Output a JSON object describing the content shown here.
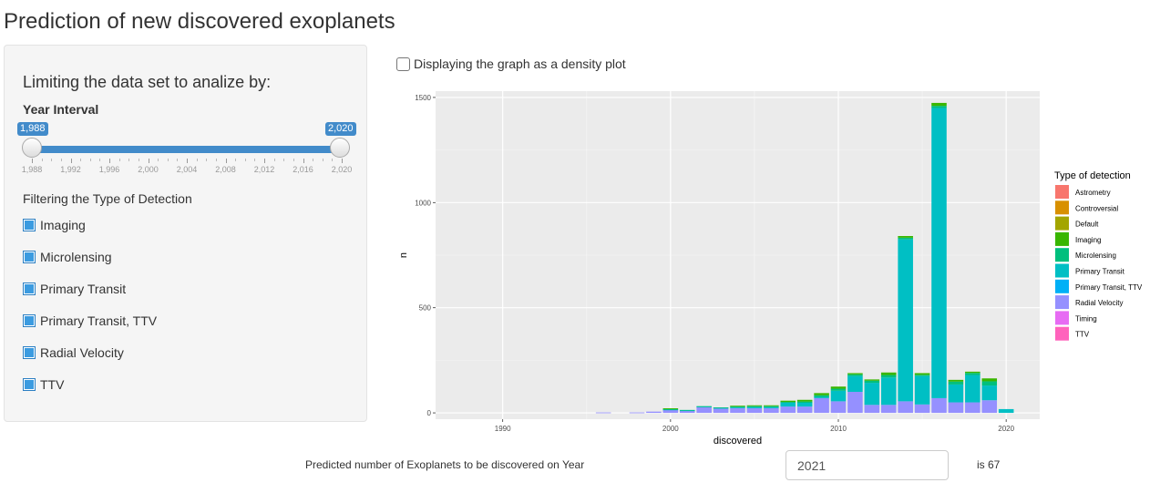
{
  "page": {
    "title": "Prediction of new discovered exoplanets"
  },
  "sidebar": {
    "heading": "Limiting the data set to analize by:",
    "year_interval": {
      "label": "Year Interval",
      "min": 1988,
      "max": 2020,
      "from": 1988,
      "to": 2020,
      "from_label": "1,988",
      "to_label": "2,020",
      "tick_labels": [
        "1,988",
        "1,992",
        "1,996",
        "2,000",
        "2,004",
        "2,008",
        "2,012",
        "2,016",
        "2,020"
      ]
    },
    "filter_label": "Filtering the Type of Detection",
    "checkboxes": [
      {
        "label": "Imaging",
        "checked": true
      },
      {
        "label": "Microlensing",
        "checked": true
      },
      {
        "label": "Primary Transit",
        "checked": true
      },
      {
        "label": "Primary Transit, TTV",
        "checked": true
      },
      {
        "label": "Radial Velocity",
        "checked": true
      },
      {
        "label": "TTV",
        "checked": true
      }
    ]
  },
  "density_checkbox": {
    "label": "Displaying the graph as a density plot",
    "checked": false
  },
  "prediction": {
    "label": "Predicted number of Exoplanets to be discovered on Year",
    "year_value": "2021",
    "result": "is 67"
  },
  "chart_data": {
    "type": "bar",
    "stacked": true,
    "xlabel": "discovered",
    "ylabel": "n",
    "xlim": [
      1986,
      2022
    ],
    "ylim": [
      -30,
      1530
    ],
    "x_ticks": [
      1990,
      2000,
      2010,
      2020
    ],
    "y_ticks": [
      0,
      500,
      1000,
      1500
    ],
    "grid": true,
    "legend_title": "Type of detection",
    "legend_position": "right",
    "legend": [
      {
        "name": "Astrometry",
        "color": "#F8766D"
      },
      {
        "name": "Controversial",
        "color": "#D89000"
      },
      {
        "name": "Default",
        "color": "#A3A500"
      },
      {
        "name": "Imaging",
        "color": "#39B600"
      },
      {
        "name": "Microlensing",
        "color": "#00BF7D"
      },
      {
        "name": "Primary Transit",
        "color": "#00BFC4"
      },
      {
        "name": "Primary Transit, TTV",
        "color": "#00B0F6"
      },
      {
        "name": "Radial Velocity",
        "color": "#9590FF"
      },
      {
        "name": "Timing",
        "color": "#E76BF3"
      },
      {
        "name": "TTV",
        "color": "#FF62BC"
      }
    ],
    "years": [
      1996,
      1998,
      1999,
      2000,
      2001,
      2002,
      2003,
      2004,
      2005,
      2006,
      2007,
      2008,
      2009,
      2010,
      2011,
      2012,
      2013,
      2014,
      2015,
      2016,
      2017,
      2018,
      2019,
      2020
    ],
    "series": [
      {
        "name": "Radial Velocity",
        "color": "#9590FF",
        "values": [
          2,
          2,
          6,
          14,
          10,
          28,
          20,
          22,
          22,
          22,
          30,
          30,
          70,
          55,
          100,
          38,
          38,
          55,
          40,
          70,
          50,
          50,
          60,
          0
        ]
      },
      {
        "name": "Primary Transit",
        "color": "#00BFC4",
        "values": [
          0,
          0,
          0,
          2,
          2,
          2,
          4,
          4,
          6,
          6,
          18,
          18,
          6,
          50,
          75,
          105,
          130,
          770,
          135,
          1380,
          85,
          130,
          70,
          18
        ]
      },
      {
        "name": "Microlensing",
        "color": "#00BF7D",
        "values": [
          0,
          0,
          0,
          2,
          2,
          2,
          2,
          4,
          4,
          4,
          4,
          6,
          8,
          10,
          8,
          10,
          12,
          8,
          6,
          10,
          14,
          10,
          20,
          0
        ]
      },
      {
        "name": "Imaging",
        "color": "#39B600",
        "values": [
          0,
          0,
          0,
          4,
          0,
          0,
          0,
          4,
          4,
          4,
          6,
          8,
          10,
          10,
          6,
          6,
          12,
          8,
          8,
          14,
          8,
          6,
          14,
          0
        ]
      },
      {
        "name": "Primary Transit, TTV",
        "color": "#00B0F6",
        "values": [
          0,
          0,
          0,
          0,
          0,
          0,
          0,
          0,
          0,
          0,
          0,
          0,
          0,
          0,
          0,
          0,
          0,
          0,
          0,
          0,
          0,
          0,
          0,
          0
        ]
      },
      {
        "name": "TTV",
        "color": "#FF62BC",
        "values": [
          0,
          0,
          0,
          0,
          0,
          0,
          0,
          0,
          0,
          0,
          0,
          0,
          0,
          0,
          0,
          0,
          0,
          0,
          0,
          0,
          0,
          0,
          0,
          0
        ]
      }
    ]
  }
}
